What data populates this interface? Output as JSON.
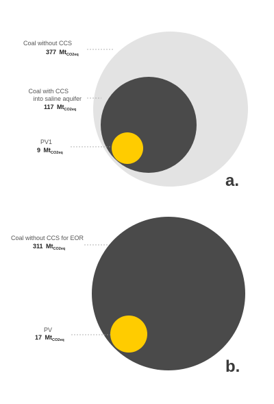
{
  "chart_data": [
    {
      "type": "bubble",
      "panel_label": "a.",
      "unit_main": "Mt",
      "unit_sub": "CO2eq",
      "series": [
        {
          "name": "Coal without CCS",
          "name_line2": "",
          "value_text": "377",
          "value": 377,
          "color": "#e3e3e3"
        },
        {
          "name": "Coal with CCS",
          "name_line2": "into saline aquifer",
          "value_text": "117",
          "value": 117,
          "color": "#4a4a4a"
        },
        {
          "name": "PV1",
          "name_line2": "",
          "value_text": "9",
          "value": 9,
          "color": "#ffcc00"
        }
      ]
    },
    {
      "type": "bubble",
      "panel_label": "b.",
      "unit_main": "Mt",
      "unit_sub": "CO2eq",
      "series": [
        {
          "name": "Coal without CCS for EOR",
          "name_line2": "",
          "value_text": "311",
          "value": 311,
          "color": "#4a4a4a"
        },
        {
          "name": "PV",
          "name_line2": "",
          "value_text": "17",
          "value": 17,
          "color": "#ffcc00"
        }
      ]
    }
  ]
}
